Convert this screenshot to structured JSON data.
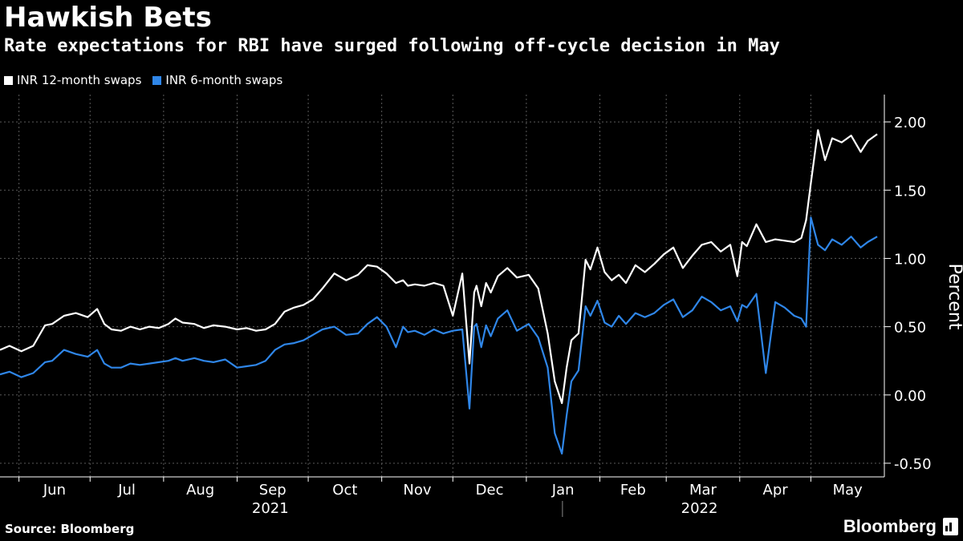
{
  "title": "Hawkish Bets",
  "subtitle": "Rate expectations for RBI have surged following off-cycle decision in May",
  "source": "Source: Bloomberg",
  "brand": "Bloomberg",
  "colors": {
    "series_12m": "#ffffff",
    "series_6m": "#2f86e8",
    "grid": "#5a5a5a",
    "background": "#000000"
  },
  "chart_data": {
    "type": "line",
    "title": "Hawkish Bets",
    "ylabel": "Percent",
    "xlabel": "",
    "ylim": [
      -0.6,
      2.2
    ],
    "yticks": [
      -0.5,
      0.0,
      0.5,
      1.0,
      1.5,
      2.0
    ],
    "ytick_labels": [
      "-0.50",
      "0.00",
      "0.50",
      "1.00",
      "1.50",
      "2.00"
    ],
    "x_start": "2021-05-24",
    "x_end": "2022-06-01",
    "month_ticks": [
      "2021-06-01",
      "2021-07-01",
      "2021-08-01",
      "2021-09-01",
      "2021-10-01",
      "2021-11-01",
      "2021-12-01",
      "2022-01-01",
      "2022-02-01",
      "2022-03-01",
      "2022-04-01",
      "2022-05-01"
    ],
    "month_labels": [
      "Jun",
      "Jul",
      "Aug",
      "Sep",
      "Oct",
      "Nov",
      "Dec",
      "Jan",
      "Feb",
      "Mar",
      "Apr",
      "May"
    ],
    "year_labels": [
      {
        "label": "2021",
        "at": "2021-09-15"
      },
      {
        "label": "2022",
        "at": "2022-03-15"
      }
    ],
    "year_divider": "2022-01-01",
    "grid": true,
    "legend_position": "top-left",
    "series": [
      {
        "name": "INR 12-month swaps",
        "color": "#ffffff",
        "x": [
          "2021-05-24",
          "2021-05-28",
          "2021-06-02",
          "2021-06-07",
          "2021-06-12",
          "2021-06-15",
          "2021-06-20",
          "2021-06-25",
          "2021-06-30",
          "2021-07-04",
          "2021-07-07",
          "2021-07-10",
          "2021-07-14",
          "2021-07-18",
          "2021-07-22",
          "2021-07-26",
          "2021-07-30",
          "2021-08-03",
          "2021-08-06",
          "2021-08-09",
          "2021-08-14",
          "2021-08-18",
          "2021-08-22",
          "2021-08-27",
          "2021-09-01",
          "2021-09-05",
          "2021-09-09",
          "2021-09-13",
          "2021-09-17",
          "2021-09-21",
          "2021-09-25",
          "2021-09-29",
          "2021-10-03",
          "2021-10-07",
          "2021-10-12",
          "2021-10-17",
          "2021-10-22",
          "2021-10-26",
          "2021-10-30",
          "2021-11-03",
          "2021-11-07",
          "2021-11-10",
          "2021-11-12",
          "2021-11-15",
          "2021-11-19",
          "2021-11-23",
          "2021-11-27",
          "2021-12-01",
          "2021-12-05",
          "2021-12-08",
          "2021-12-10",
          "2021-12-11",
          "2021-12-13",
          "2021-12-15",
          "2021-12-17",
          "2021-12-20",
          "2021-12-24",
          "2021-12-28",
          "2022-01-02",
          "2022-01-06",
          "2022-01-10",
          "2022-01-13",
          "2022-01-16",
          "2022-01-18",
          "2022-01-20",
          "2022-01-23",
          "2022-01-26",
          "2022-01-28",
          "2022-01-31",
          "2022-02-03",
          "2022-02-06",
          "2022-02-09",
          "2022-02-12",
          "2022-02-16",
          "2022-02-20",
          "2022-02-24",
          "2022-02-28",
          "2022-03-04",
          "2022-03-08",
          "2022-03-12",
          "2022-03-16",
          "2022-03-20",
          "2022-03-24",
          "2022-03-28",
          "2022-03-31",
          "2022-04-02",
          "2022-04-04",
          "2022-04-08",
          "2022-04-12",
          "2022-04-16",
          "2022-04-20",
          "2022-04-24",
          "2022-04-27",
          "2022-04-29",
          "2022-05-01",
          "2022-05-04",
          "2022-05-07",
          "2022-05-10",
          "2022-05-14",
          "2022-05-18",
          "2022-05-22",
          "2022-05-25",
          "2022-05-29"
        ],
        "values": [
          0.33,
          0.36,
          0.32,
          0.36,
          0.51,
          0.52,
          0.58,
          0.6,
          0.57,
          0.63,
          0.52,
          0.48,
          0.47,
          0.5,
          0.48,
          0.5,
          0.49,
          0.52,
          0.56,
          0.53,
          0.52,
          0.49,
          0.51,
          0.5,
          0.48,
          0.49,
          0.47,
          0.48,
          0.52,
          0.61,
          0.64,
          0.66,
          0.7,
          0.78,
          0.89,
          0.84,
          0.88,
          0.95,
          0.94,
          0.89,
          0.82,
          0.84,
          0.8,
          0.81,
          0.8,
          0.82,
          0.8,
          0.58,
          0.89,
          0.23,
          0.75,
          0.8,
          0.65,
          0.82,
          0.75,
          0.87,
          0.93,
          0.86,
          0.88,
          0.78,
          0.45,
          0.1,
          -0.06,
          0.2,
          0.4,
          0.45,
          0.99,
          0.92,
          1.08,
          0.9,
          0.84,
          0.88,
          0.82,
          0.95,
          0.9,
          0.96,
          1.03,
          1.08,
          0.93,
          1.02,
          1.1,
          1.12,
          1.05,
          1.1,
          0.87,
          1.12,
          1.09,
          1.25,
          1.12,
          1.14,
          1.13,
          1.12,
          1.15,
          1.28,
          1.55,
          1.94,
          1.72,
          1.88,
          1.85,
          1.9,
          1.78,
          1.86,
          1.91
        ]
      },
      {
        "name": "INR 6-month swaps",
        "color": "#2f86e8",
        "x": [
          "2021-05-24",
          "2021-05-28",
          "2021-06-02",
          "2021-06-07",
          "2021-06-12",
          "2021-06-15",
          "2021-06-20",
          "2021-06-25",
          "2021-06-30",
          "2021-07-04",
          "2021-07-07",
          "2021-07-10",
          "2021-07-14",
          "2021-07-18",
          "2021-07-22",
          "2021-07-26",
          "2021-07-30",
          "2021-08-03",
          "2021-08-06",
          "2021-08-09",
          "2021-08-14",
          "2021-08-18",
          "2021-08-22",
          "2021-08-27",
          "2021-09-01",
          "2021-09-05",
          "2021-09-09",
          "2021-09-13",
          "2021-09-17",
          "2021-09-21",
          "2021-09-25",
          "2021-09-29",
          "2021-10-03",
          "2021-10-07",
          "2021-10-12",
          "2021-10-17",
          "2021-10-22",
          "2021-10-26",
          "2021-10-30",
          "2021-11-03",
          "2021-11-07",
          "2021-11-10",
          "2021-11-12",
          "2021-11-15",
          "2021-11-19",
          "2021-11-23",
          "2021-11-27",
          "2021-12-01",
          "2021-12-05",
          "2021-12-08",
          "2021-12-10",
          "2021-12-11",
          "2021-12-13",
          "2021-12-15",
          "2021-12-17",
          "2021-12-20",
          "2021-12-24",
          "2021-12-28",
          "2022-01-02",
          "2022-01-06",
          "2022-01-10",
          "2022-01-13",
          "2022-01-16",
          "2022-01-18",
          "2022-01-20",
          "2022-01-23",
          "2022-01-26",
          "2022-01-28",
          "2022-01-31",
          "2022-02-03",
          "2022-02-06",
          "2022-02-09",
          "2022-02-12",
          "2022-02-16",
          "2022-02-20",
          "2022-02-24",
          "2022-02-28",
          "2022-03-04",
          "2022-03-08",
          "2022-03-12",
          "2022-03-16",
          "2022-03-20",
          "2022-03-24",
          "2022-03-28",
          "2022-03-31",
          "2022-04-02",
          "2022-04-04",
          "2022-04-08",
          "2022-04-12",
          "2022-04-16",
          "2022-04-20",
          "2022-04-24",
          "2022-04-27",
          "2022-04-29",
          "2022-05-01",
          "2022-05-04",
          "2022-05-07",
          "2022-05-10",
          "2022-05-14",
          "2022-05-18",
          "2022-05-22",
          "2022-05-25",
          "2022-05-29"
        ],
        "values": [
          0.15,
          0.17,
          0.13,
          0.16,
          0.24,
          0.25,
          0.33,
          0.3,
          0.28,
          0.33,
          0.23,
          0.2,
          0.2,
          0.23,
          0.22,
          0.23,
          0.24,
          0.25,
          0.27,
          0.25,
          0.27,
          0.25,
          0.24,
          0.26,
          0.2,
          0.21,
          0.22,
          0.25,
          0.33,
          0.37,
          0.38,
          0.4,
          0.44,
          0.48,
          0.5,
          0.44,
          0.45,
          0.52,
          0.57,
          0.5,
          0.35,
          0.5,
          0.46,
          0.47,
          0.44,
          0.48,
          0.45,
          0.47,
          0.48,
          -0.1,
          0.5,
          0.52,
          0.35,
          0.51,
          0.43,
          0.56,
          0.62,
          0.47,
          0.52,
          0.42,
          0.2,
          -0.28,
          -0.43,
          -0.15,
          0.1,
          0.18,
          0.65,
          0.58,
          0.69,
          0.53,
          0.5,
          0.58,
          0.52,
          0.6,
          0.57,
          0.6,
          0.66,
          0.7,
          0.57,
          0.62,
          0.72,
          0.68,
          0.62,
          0.65,
          0.54,
          0.66,
          0.64,
          0.74,
          0.16,
          0.68,
          0.64,
          0.58,
          0.56,
          0.5,
          1.3,
          1.1,
          1.06,
          1.14,
          1.1,
          1.16,
          1.08,
          1.12,
          1.16
        ]
      }
    ]
  }
}
